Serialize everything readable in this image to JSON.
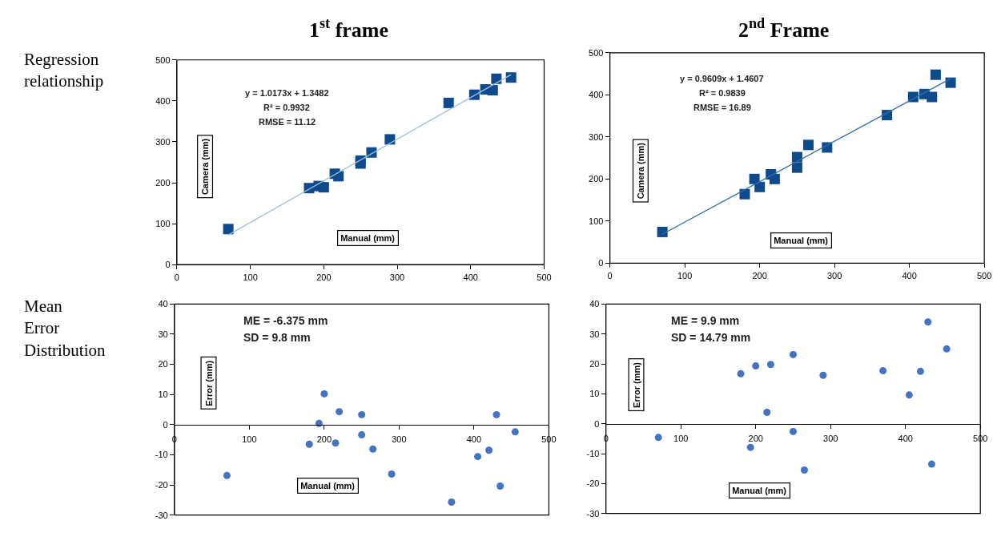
{
  "chart_data": [
    {
      "type": "scatter",
      "title": "1$^{st}$ frame",
      "subtitle": "Regression relationship",
      "xlabel": "Manual (mm)",
      "ylabel": "Camera (mm)",
      "annotations": [
        "y = 1.0173x + 1.3482",
        "R² = 0.9932",
        "RMSE = 11.12"
      ],
      "xlim": [
        0,
        500
      ],
      "xticks": [
        0,
        100,
        200,
        300,
        400,
        500
      ],
      "ylim": [
        0,
        500
      ],
      "yticks": [
        0,
        100,
        200,
        300,
        400,
        500
      ],
      "marker": "square",
      "series": [
        {
          "color": "#0e4a8c",
          "x": [
            70,
            180,
            193,
            200,
            215,
            220,
            250,
            250,
            265,
            290,
            370,
            405,
            420,
            430,
            435,
            455
          ],
          "values": [
            87,
            187,
            192,
            189,
            222,
            216,
            254,
            247,
            274,
            306,
            395,
            415,
            428,
            426,
            454,
            457
          ]
        },
        {
          "type": "line",
          "marker": "none",
          "color": "#9fc0de",
          "x": [
            70,
            455
          ],
          "values": [
            72.6,
            464.2
          ]
        }
      ]
    },
    {
      "type": "scatter",
      "title": "2$^{nd}$ Frame",
      "xlabel": "Manual (mm)",
      "ylabel": "Camera (mm)",
      "annotations": [
        "y = 0.9609x + 1.4607",
        "R² = 0.9839",
        "RMSE = 16.89"
      ],
      "xlim": [
        0,
        500
      ],
      "xticks": [
        0,
        100,
        200,
        300,
        400,
        500
      ],
      "ylim": [
        0,
        500
      ],
      "yticks": [
        0,
        100,
        200,
        300,
        400,
        500
      ],
      "marker": "square",
      "series": [
        {
          "color": "#0e4a8c",
          "x": [
            70,
            180,
            193,
            200,
            215,
            220,
            250,
            250,
            265,
            290,
            370,
            405,
            420,
            430,
            435,
            455
          ],
          "values": [
            74,
            164,
            200,
            181,
            211,
            200,
            252,
            227,
            281,
            275,
            352,
            395,
            402,
            395,
            448,
            429
          ]
        },
        {
          "type": "line",
          "marker": "none",
          "color": "#2e6fb0",
          "x": [
            70,
            455
          ],
          "values": [
            68.7,
            438.7
          ]
        }
      ]
    },
    {
      "type": "scatter",
      "subtitle": "Mean Error Distribution",
      "xlabel": "Manual (mm)",
      "ylabel": "Error (mm)",
      "annotations": [
        "ME = -6.375 mm",
        "SD = 9.8 mm"
      ],
      "xlim": [
        0,
        500
      ],
      "xticks": [
        0,
        100,
        200,
        300,
        400,
        500
      ],
      "ylim": [
        -30,
        40
      ],
      "yticks": [
        -30,
        -20,
        -10,
        0,
        10,
        20,
        30,
        40
      ],
      "marker": "circle",
      "series": [
        {
          "color": "#4472c4",
          "x": [
            70,
            180,
            193,
            200,
            215,
            220,
            250,
            250,
            265,
            290,
            370,
            405,
            420,
            430,
            435,
            455
          ],
          "values": [
            -16.9,
            -6.5,
            0.4,
            10.2,
            -6.1,
            4.3,
            3.3,
            -3.4,
            -8.1,
            -16.4,
            -25.7,
            -10.6,
            -8.5,
            3.3,
            -20.4,
            -2.4
          ]
        }
      ]
    },
    {
      "type": "scatter",
      "xlabel": "Manual (mm)",
      "ylabel": "Error (mm)",
      "annotations": [
        "ME = 9.9 mm",
        "SD = 14.79 mm"
      ],
      "xlim": [
        0,
        500
      ],
      "xticks": [
        0,
        100,
        200,
        300,
        400,
        500
      ],
      "ylim": [
        -30,
        40
      ],
      "yticks": [
        -30,
        -20,
        -10,
        0,
        10,
        20,
        30,
        40
      ],
      "marker": "circle",
      "series": [
        {
          "color": "#4472c4",
          "x": [
            70,
            180,
            193,
            200,
            215,
            220,
            250,
            250,
            265,
            290,
            370,
            405,
            420,
            430,
            435,
            455
          ],
          "values": [
            -4.6,
            16.7,
            -7.9,
            19.3,
            3.8,
            19.8,
            23.1,
            -2.6,
            -15.5,
            16.2,
            17.7,
            9.6,
            17.5,
            34.0,
            -13.5,
            25.0
          ]
        }
      ]
    }
  ]
}
